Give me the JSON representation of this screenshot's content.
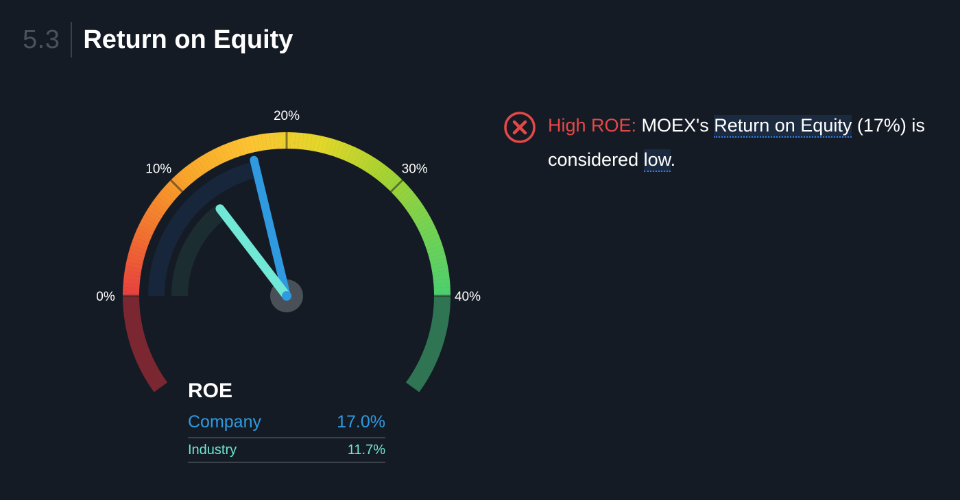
{
  "header": {
    "section_number": "5.3",
    "title": "Return on Equity"
  },
  "chart_data": {
    "type": "gauge",
    "min": 0,
    "max": 40,
    "unit": "%",
    "tick_labels": [
      "0%",
      "10%",
      "20%",
      "30%",
      "40%"
    ],
    "tick_values": [
      0,
      10,
      20,
      30,
      40
    ],
    "color_stops": [
      "#e8403f",
      "#f2762f",
      "#f9a72a",
      "#fcc432",
      "#e2d72a",
      "#a6d231",
      "#75d253",
      "#4ccf6f"
    ],
    "below_min_color": "#7b2731",
    "above_max_color": "#2f7554",
    "series": [
      {
        "name": "Company",
        "value": 17.0,
        "display": "17.0%",
        "color": "#2f9ae0"
      },
      {
        "name": "Industry",
        "value": 11.7,
        "display": "11.7%",
        "color": "#71e7d6"
      }
    ]
  },
  "legend": {
    "title": "ROE",
    "rows": [
      {
        "label": "Company",
        "value": "17.0%"
      },
      {
        "label": "Industry",
        "value": "11.7%"
      }
    ]
  },
  "insight": {
    "icon": "x-circle-icon",
    "status_color": "#e64848",
    "label": "High ROE:",
    "text_1": " MOEX's ",
    "term_1": "Return on Equity",
    "text_2": " (17%) is considered ",
    "term_2": "low",
    "text_3": "."
  }
}
